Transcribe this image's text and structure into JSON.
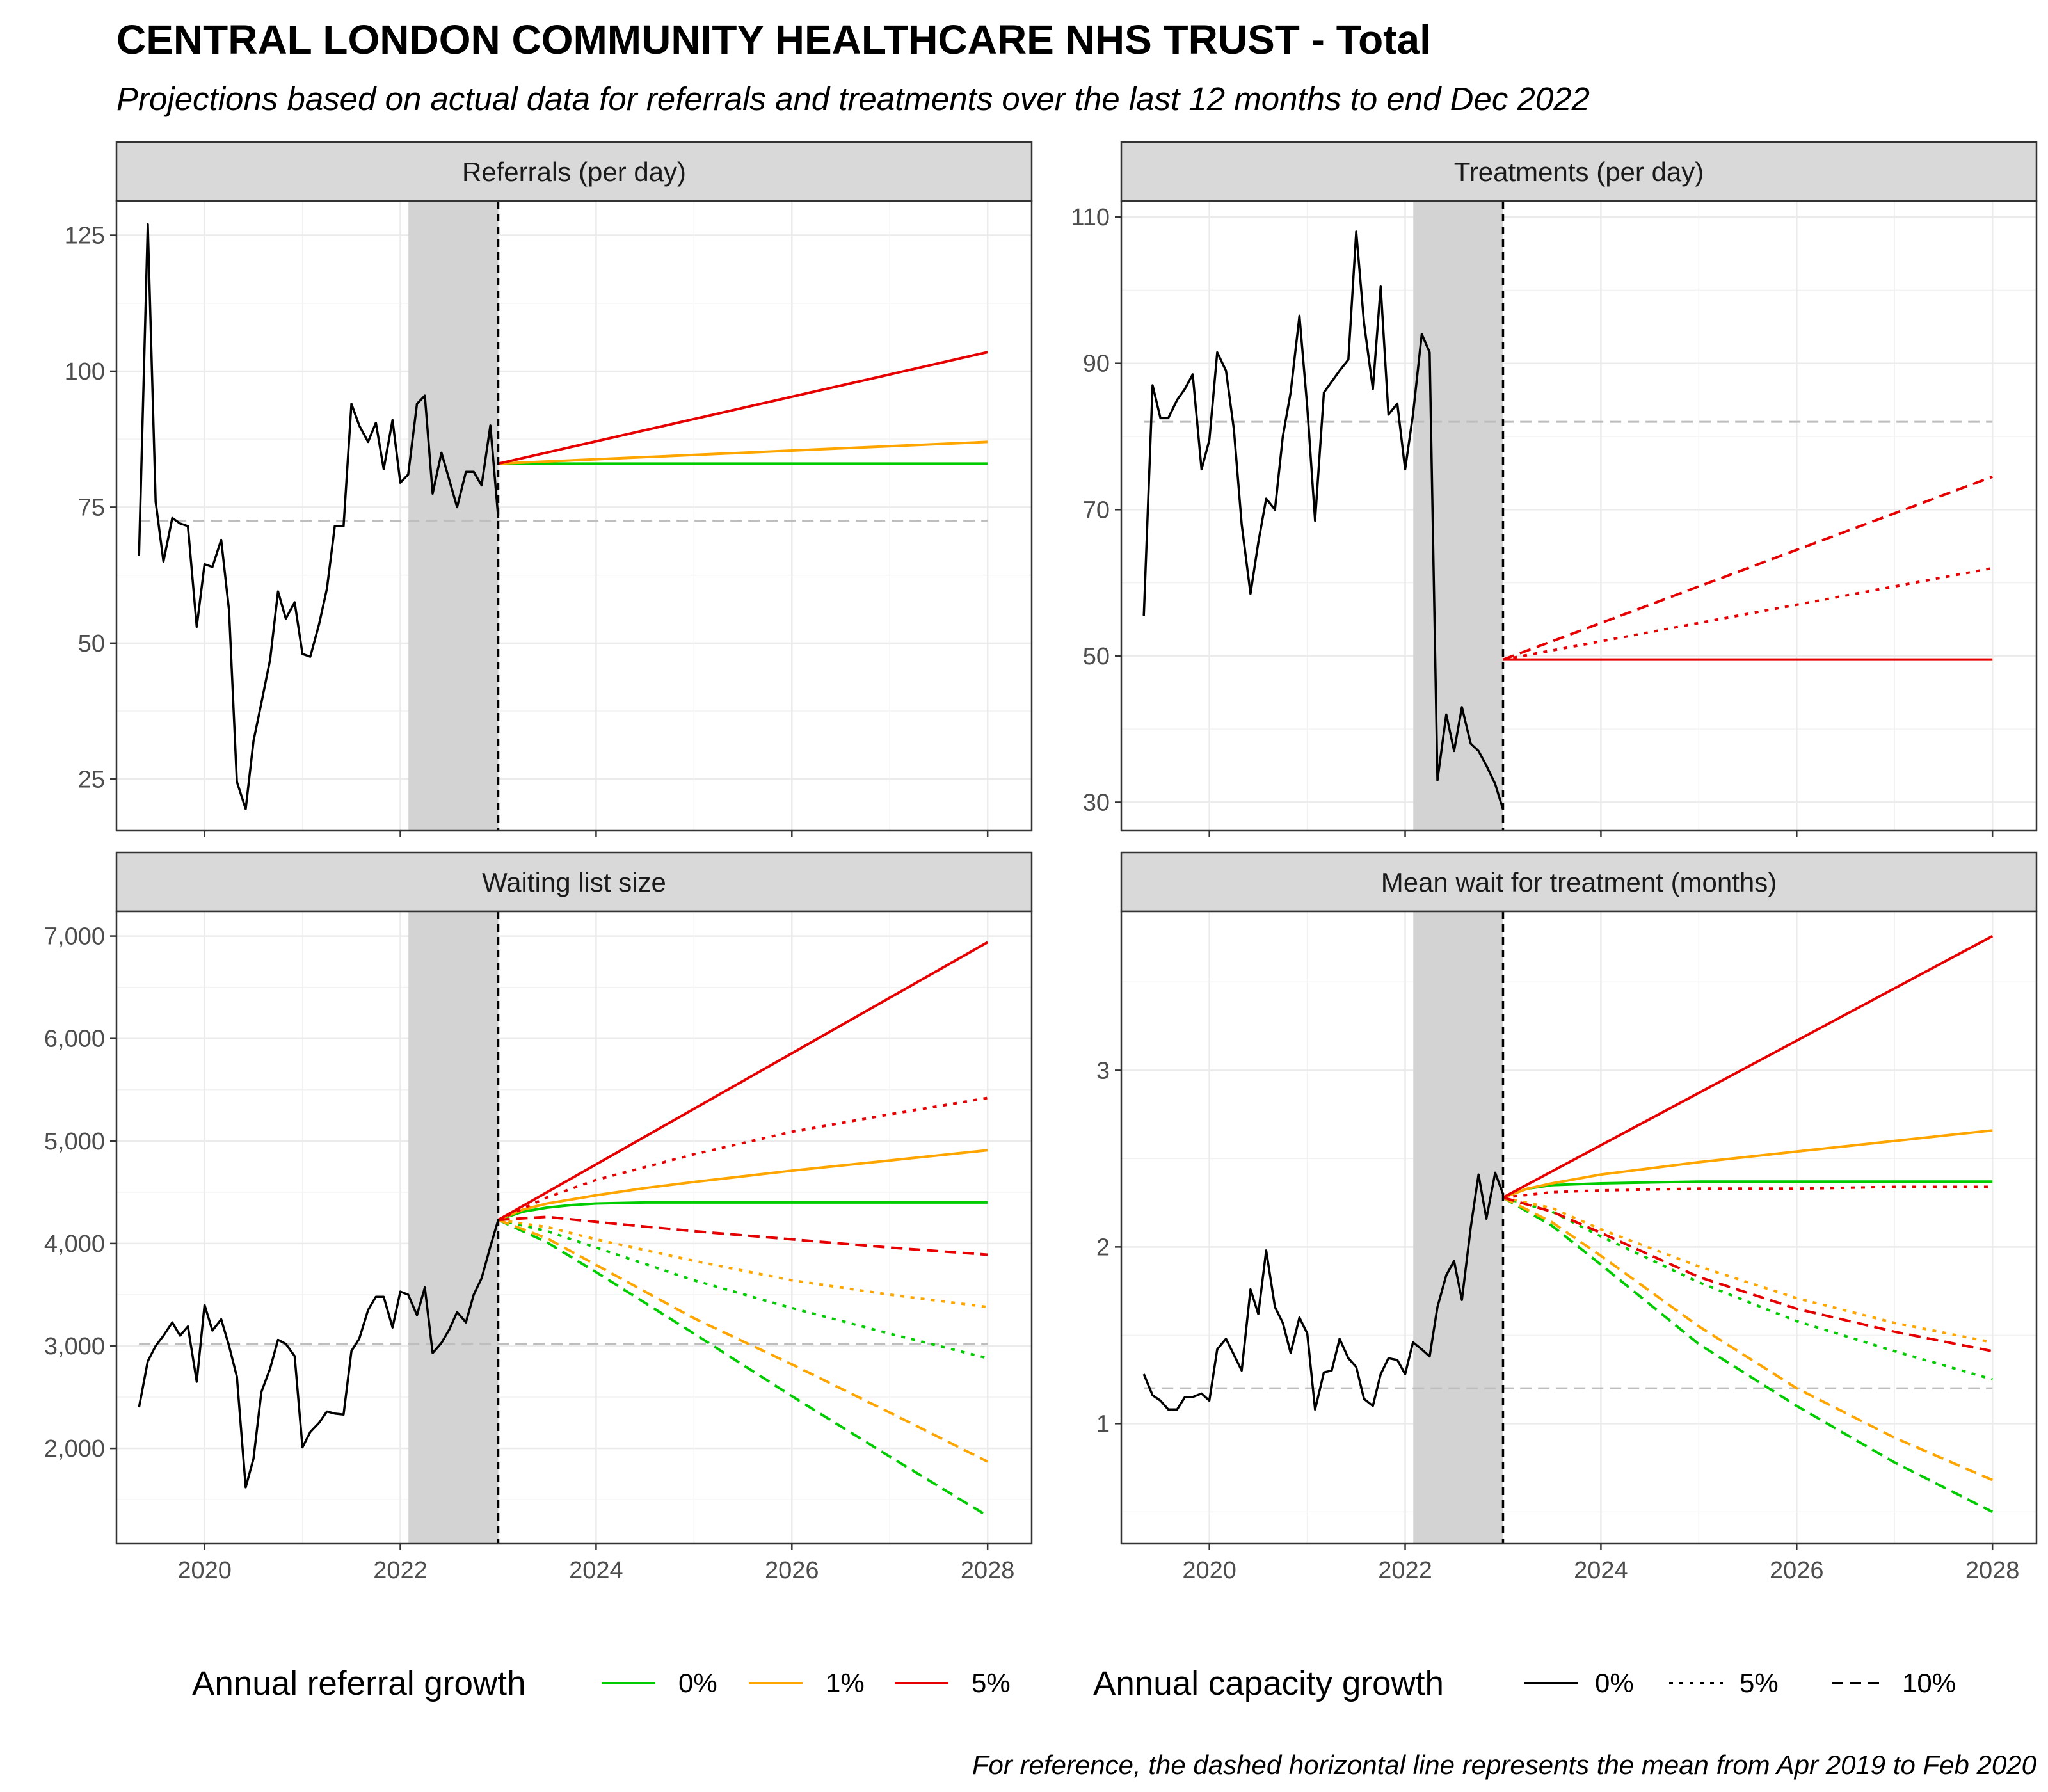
{
  "title": "CENTRAL LONDON COMMUNITY HEALTHCARE NHS TRUST - Total",
  "subtitle": "Projections based on actual data for referrals and treatments over the last 12 months to end Dec 2022",
  "caption": "For reference, the dashed horizontal line represents the mean from Apr 2019 to Feb 2020",
  "colors": {
    "referral_0": "#00CC00",
    "referral_1": "#FFA500",
    "referral_5": "#E60000",
    "shade": "#D3D3D3",
    "actual": "#000000",
    "reference": "#BEBEBE"
  },
  "legends": {
    "referral": {
      "title": "Annual referral growth",
      "items": [
        {
          "label": "0%",
          "color": "#00CC00"
        },
        {
          "label": "1%",
          "color": "#FFA500"
        },
        {
          "label": "5%",
          "color": "#E60000"
        }
      ]
    },
    "capacity": {
      "title": "Annual capacity growth",
      "items": [
        {
          "label": "0%",
          "linetype": "solid"
        },
        {
          "label": "5%",
          "linetype": "dotted"
        },
        {
          "label": "10%",
          "linetype": "dashed"
        }
      ]
    }
  },
  "chart_data": [
    {
      "type": "line",
      "title": "Referrals (per day)",
      "x_ticks": [
        2020,
        2022,
        2024,
        2026,
        2028
      ],
      "y_ticks": [
        25,
        50,
        75,
        100,
        125
      ],
      "y_tick_labels": [
        "25",
        "50",
        "75",
        "100",
        "125"
      ],
      "xlim": [
        2019.1,
        2028.45
      ],
      "ylim": [
        15.5,
        131.3
      ],
      "shaded_period": [
        2022.083,
        2023.0
      ],
      "forecast_start": 2023.0,
      "reference_mean": 72.5,
      "actual": {
        "x": [
          2019.33,
          2019.42,
          2019.5,
          2019.58,
          2019.67,
          2019.75,
          2019.83,
          2019.92,
          2020.0,
          2020.08,
          2020.17,
          2020.25,
          2020.33,
          2020.42,
          2020.5,
          2020.58,
          2020.67,
          2020.75,
          2020.83,
          2020.92,
          2021.0,
          2021.08,
          2021.17,
          2021.25,
          2021.33,
          2021.42,
          2021.5,
          2021.58,
          2021.67,
          2021.75,
          2021.83,
          2021.92,
          2022.0,
          2022.08,
          2022.17,
          2022.25,
          2022.33,
          2022.42,
          2022.5,
          2022.58,
          2022.67,
          2022.75,
          2022.83,
          2022.92,
          2023.0
        ],
        "y": [
          66,
          127,
          76,
          65,
          73,
          72,
          71.5,
          53,
          64.5,
          64,
          69,
          56,
          24.5,
          19.5,
          32,
          39,
          47,
          59.5,
          54.5,
          57.5,
          48,
          47.5,
          53.5,
          60,
          71.5,
          71.5,
          94,
          90,
          87,
          90.5,
          82,
          91,
          79.5,
          81,
          94,
          95.5,
          77.5,
          85,
          80,
          75,
          81.5,
          81.5,
          79,
          90,
          73
        ]
      },
      "projections": [
        {
          "growth": "0%",
          "capacity": "0%",
          "x": [
            2023.0,
            2028.0
          ],
          "y": [
            83,
            83
          ]
        },
        {
          "growth": "1%",
          "capacity": "0%",
          "x": [
            2023.0,
            2028.0
          ],
          "y": [
            83,
            87
          ]
        },
        {
          "growth": "5%",
          "capacity": "0%",
          "x": [
            2023.0,
            2028.0
          ],
          "y": [
            83,
            103.5
          ]
        }
      ]
    },
    {
      "type": "line",
      "title": "Treatments (per day)",
      "x_ticks": [
        2020,
        2022,
        2024,
        2026,
        2028
      ],
      "y_ticks": [
        30,
        50,
        70,
        90,
        110
      ],
      "y_tick_labels": [
        "30",
        "50",
        "70",
        "90",
        "110"
      ],
      "xlim": [
        2019.1,
        2028.45
      ],
      "ylim": [
        26.1,
        112.2
      ],
      "shaded_period": [
        2022.083,
        2023.0
      ],
      "forecast_start": 2023.0,
      "reference_mean": 82,
      "actual": {
        "x": [
          2019.33,
          2019.42,
          2019.5,
          2019.58,
          2019.67,
          2019.75,
          2019.83,
          2019.92,
          2020.0,
          2020.08,
          2020.17,
          2020.25,
          2020.33,
          2020.42,
          2020.5,
          2020.58,
          2020.67,
          2020.75,
          2020.83,
          2020.92,
          2021.0,
          2021.08,
          2021.17,
          2021.25,
          2021.33,
          2021.42,
          2021.5,
          2021.58,
          2021.67,
          2021.75,
          2021.83,
          2021.92,
          2022.0,
          2022.08,
          2022.17,
          2022.25,
          2022.33,
          2022.42,
          2022.5,
          2022.58,
          2022.67,
          2022.75,
          2022.83,
          2022.92,
          2023.0
        ],
        "y": [
          55.5,
          87,
          82.5,
          82.5,
          85,
          86.5,
          88.5,
          75.5,
          79.5,
          91.5,
          89,
          81,
          68,
          58.5,
          65.5,
          71.5,
          70,
          80,
          86,
          96.5,
          84,
          68.5,
          86,
          87.5,
          89,
          90.5,
          108,
          95.5,
          86.5,
          100.5,
          83,
          84.5,
          75.5,
          83,
          94,
          91.5,
          33,
          42,
          37,
          43,
          38,
          37,
          35,
          32.5,
          29
        ]
      },
      "projections": [
        {
          "growth": "5%",
          "capacity": "0%",
          "x": [
            2023.0,
            2028.0
          ],
          "y": [
            49.5,
            49.5
          ]
        },
        {
          "growth": "5%",
          "capacity": "5%",
          "x": [
            2023.0,
            2028.0
          ],
          "y": [
            49.5,
            62
          ]
        },
        {
          "growth": "5%",
          "capacity": "10%",
          "x": [
            2023.0,
            2028.0
          ],
          "y": [
            49.5,
            74.5
          ]
        }
      ]
    },
    {
      "type": "line",
      "title": "Waiting list size",
      "x_ticks": [
        2020,
        2022,
        2024,
        2026,
        2028
      ],
      "y_ticks": [
        2000,
        3000,
        4000,
        5000,
        6000,
        7000
      ],
      "y_tick_labels": [
        "2,000",
        "3,000",
        "4,000",
        "5,000",
        "6,000",
        "7,000"
      ],
      "xlim": [
        2019.1,
        2028.45
      ],
      "ylim": [
        1070,
        7241
      ],
      "shaded_period": [
        2022.083,
        2023.0
      ],
      "forecast_start": 2023.0,
      "reference_mean": 3020,
      "actual": {
        "x": [
          2019.33,
          2019.42,
          2019.5,
          2019.58,
          2019.67,
          2019.75,
          2019.83,
          2019.92,
          2020.0,
          2020.08,
          2020.17,
          2020.25,
          2020.33,
          2020.42,
          2020.5,
          2020.58,
          2020.67,
          2020.75,
          2020.83,
          2020.92,
          2021.0,
          2021.08,
          2021.17,
          2021.25,
          2021.33,
          2021.42,
          2021.5,
          2021.58,
          2021.67,
          2021.75,
          2021.83,
          2021.92,
          2022.0,
          2022.08,
          2022.17,
          2022.25,
          2022.33,
          2022.42,
          2022.5,
          2022.58,
          2022.67,
          2022.75,
          2022.83,
          2022.92,
          2023.0
        ],
        "y": [
          2400,
          2850,
          3000,
          3100,
          3230,
          3100,
          3190,
          2650,
          3400,
          3150,
          3260,
          3000,
          2700,
          1620,
          1900,
          2550,
          2780,
          3060,
          3020,
          2900,
          2010,
          2160,
          2250,
          2360,
          2340,
          2330,
          2950,
          3070,
          3350,
          3480,
          3480,
          3180,
          3530,
          3500,
          3300,
          3570,
          2930,
          3030,
          3160,
          3330,
          3230,
          3500,
          3660,
          3970,
          4230
        ]
      },
      "projections": [
        {
          "growth": "0%",
          "capacity": "0%",
          "x": [
            2023.0,
            2023.25,
            2023.5,
            2023.75,
            2024.0,
            2024.5,
            2025.0,
            2026.0,
            2027.0,
            2028.0
          ],
          "y": [
            4230,
            4310,
            4350,
            4375,
            4390,
            4400,
            4400,
            4400,
            4400,
            4400
          ]
        },
        {
          "growth": "1%",
          "capacity": "0%",
          "x": [
            2023.0,
            2023.25,
            2023.5,
            2023.75,
            2024.0,
            2024.5,
            2025.0,
            2026.0,
            2027.0,
            2028.0
          ],
          "y": [
            4230,
            4330,
            4390,
            4430,
            4470,
            4540,
            4600,
            4710,
            4810,
            4910
          ]
        },
        {
          "growth": "5%",
          "capacity": "0%",
          "x": [
            2023.0,
            2028.0
          ],
          "y": [
            4230,
            6940
          ]
        },
        {
          "growth": "0%",
          "capacity": "5%",
          "x": [
            2023.0,
            2023.5,
            2024.0,
            2025.0,
            2026.0,
            2027.0,
            2028.0
          ],
          "y": [
            4230,
            4120,
            3960,
            3640,
            3370,
            3120,
            2880
          ]
        },
        {
          "growth": "1%",
          "capacity": "5%",
          "x": [
            2023.0,
            2023.5,
            2024.0,
            2025.0,
            2026.0,
            2027.0,
            2028.0
          ],
          "y": [
            4230,
            4160,
            4040,
            3830,
            3640,
            3500,
            3380
          ]
        },
        {
          "growth": "5%",
          "capacity": "5%",
          "x": [
            2023.0,
            2023.5,
            2024.0,
            2025.0,
            2026.0,
            2027.0,
            2028.0
          ],
          "y": [
            4230,
            4450,
            4620,
            4870,
            5090,
            5260,
            5420
          ]
        },
        {
          "growth": "0%",
          "capacity": "10%",
          "x": [
            2023.0,
            2023.5,
            2024.0,
            2025.0,
            2026.0,
            2027.0,
            2028.0
          ],
          "y": [
            4230,
            4010,
            3720,
            3120,
            2510,
            1920,
            1340
          ]
        },
        {
          "growth": "1%",
          "capacity": "10%",
          "x": [
            2023.0,
            2023.5,
            2024.0,
            2025.0,
            2026.0,
            2027.0,
            2028.0
          ],
          "y": [
            4230,
            4050,
            3790,
            3270,
            2820,
            2350,
            1870
          ]
        },
        {
          "growth": "5%",
          "capacity": "10%",
          "x": [
            2023.0,
            2023.5,
            2024.0,
            2025.0,
            2026.0,
            2027.0,
            2028.0
          ],
          "y": [
            4230,
            4260,
            4210,
            4120,
            4040,
            3960,
            3890
          ]
        }
      ]
    },
    {
      "type": "line",
      "title": "Mean wait for treatment (months)",
      "x_ticks": [
        2020,
        2022,
        2024,
        2026,
        2028
      ],
      "y_ticks": [
        1,
        2,
        3
      ],
      "y_tick_labels": [
        "1",
        "2",
        "3"
      ],
      "xlim": [
        2019.1,
        2028.45
      ],
      "ylim": [
        0.32,
        3.9
      ],
      "shaded_period": [
        2022.083,
        2023.0
      ],
      "forecast_start": 2023.0,
      "reference_mean": 1.2,
      "actual": {
        "x": [
          2019.33,
          2019.42,
          2019.5,
          2019.58,
          2019.67,
          2019.75,
          2019.83,
          2019.92,
          2020.0,
          2020.08,
          2020.17,
          2020.25,
          2020.33,
          2020.42,
          2020.5,
          2020.58,
          2020.67,
          2020.75,
          2020.83,
          2020.92,
          2021.0,
          2021.08,
          2021.17,
          2021.25,
          2021.33,
          2021.42,
          2021.5,
          2021.58,
          2021.67,
          2021.75,
          2021.83,
          2021.92,
          2022.0,
          2022.08,
          2022.17,
          2022.25,
          2022.33,
          2022.42,
          2022.5,
          2022.58,
          2022.67,
          2022.75,
          2022.83,
          2022.92,
          2023.0
        ],
        "y": [
          1.28,
          1.16,
          1.13,
          1.08,
          1.08,
          1.15,
          1.15,
          1.17,
          1.13,
          1.42,
          1.48,
          1.39,
          1.3,
          1.76,
          1.62,
          1.98,
          1.66,
          1.57,
          1.4,
          1.6,
          1.51,
          1.08,
          1.29,
          1.3,
          1.48,
          1.37,
          1.32,
          1.14,
          1.1,
          1.28,
          1.37,
          1.36,
          1.28,
          1.46,
          1.42,
          1.38,
          1.66,
          1.84,
          1.92,
          1.7,
          2.11,
          2.41,
          2.16,
          2.42,
          2.3
        ]
      },
      "projections": [
        {
          "growth": "0%",
          "capacity": "0%",
          "x": [
            2023.0,
            2023.25,
            2023.5,
            2024.0,
            2025.0,
            2026.0,
            2027.0,
            2028.0
          ],
          "y": [
            2.28,
            2.33,
            2.35,
            2.36,
            2.37,
            2.37,
            2.37,
            2.37
          ]
        },
        {
          "growth": "1%",
          "capacity": "0%",
          "x": [
            2023.0,
            2023.25,
            2023.5,
            2024.0,
            2025.0,
            2026.0,
            2027.0,
            2028.0
          ],
          "y": [
            2.28,
            2.33,
            2.36,
            2.41,
            2.48,
            2.54,
            2.6,
            2.66
          ]
        },
        {
          "growth": "5%",
          "capacity": "0%",
          "x": [
            2023.0,
            2028.0
          ],
          "y": [
            2.28,
            3.76
          ]
        },
        {
          "growth": "0%",
          "capacity": "5%",
          "x": [
            2023.0,
            2023.5,
            2024.0,
            2025.0,
            2026.0,
            2027.0,
            2028.0
          ],
          "y": [
            2.28,
            2.2,
            2.06,
            1.8,
            1.58,
            1.41,
            1.25
          ]
        },
        {
          "growth": "1%",
          "capacity": "5%",
          "x": [
            2023.0,
            2023.5,
            2024.0,
            2025.0,
            2026.0,
            2027.0,
            2028.0
          ],
          "y": [
            2.28,
            2.22,
            2.1,
            1.89,
            1.71,
            1.57,
            1.46
          ]
        },
        {
          "growth": "5%",
          "capacity": "5%",
          "x": [
            2023.0,
            2023.5,
            2024.0,
            2025.0,
            2026.0,
            2027.0,
            2028.0
          ],
          "y": [
            2.28,
            2.31,
            2.32,
            2.33,
            2.33,
            2.34,
            2.34
          ]
        },
        {
          "growth": "0%",
          "capacity": "10%",
          "x": [
            2023.0,
            2023.5,
            2024.0,
            2025.0,
            2026.0,
            2027.0,
            2028.0
          ],
          "y": [
            2.28,
            2.12,
            1.9,
            1.45,
            1.1,
            0.78,
            0.5
          ]
        },
        {
          "growth": "1%",
          "capacity": "10%",
          "x": [
            2023.0,
            2023.5,
            2024.0,
            2025.0,
            2026.0,
            2027.0,
            2028.0
          ],
          "y": [
            2.28,
            2.14,
            1.95,
            1.55,
            1.2,
            0.92,
            0.68
          ]
        },
        {
          "growth": "5%",
          "capacity": "10%",
          "x": [
            2023.0,
            2023.5,
            2024.0,
            2025.0,
            2026.0,
            2027.0,
            2028.0
          ],
          "y": [
            2.28,
            2.2,
            2.08,
            1.83,
            1.65,
            1.52,
            1.41
          ]
        }
      ]
    }
  ]
}
